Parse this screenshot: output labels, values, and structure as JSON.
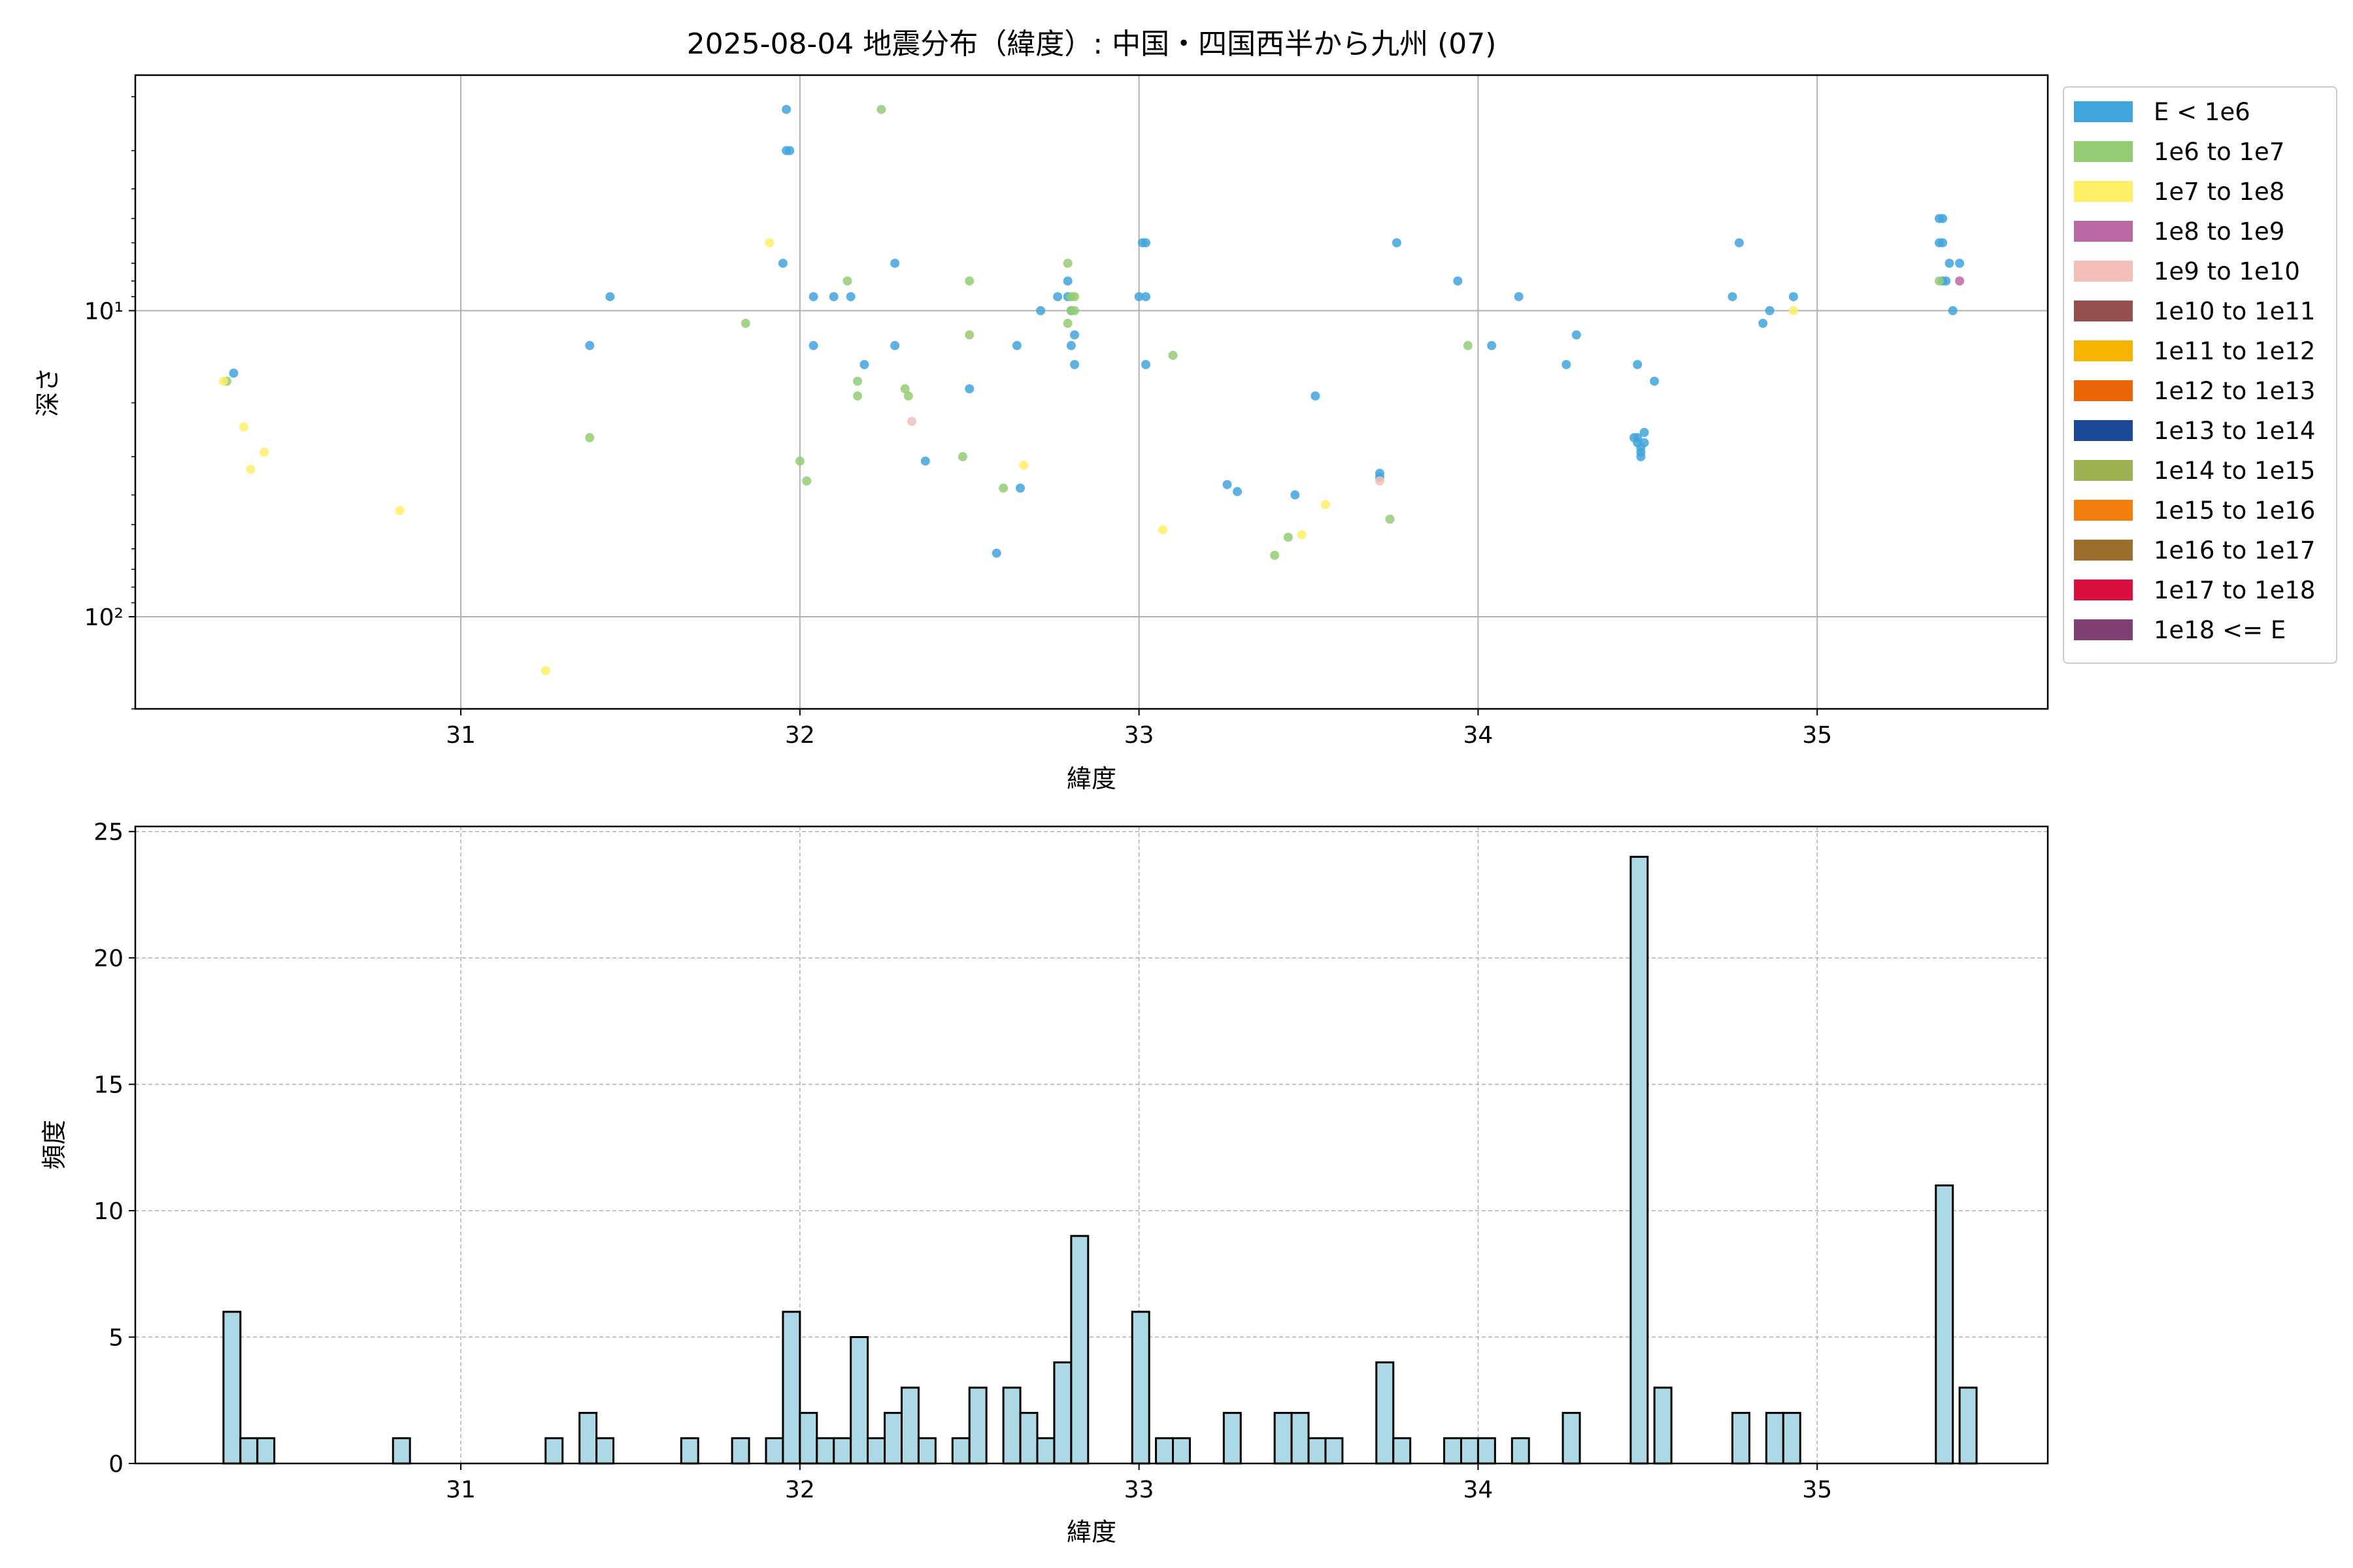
{
  "figure": {
    "title": "2025-08-04 地震分布（緯度）: 中国・四国西半から九州 (07)"
  },
  "chart_data": [
    {
      "type": "scatter",
      "title": "2025-08-04 地震分布（緯度）: 中国・四国西半から九州 (07)",
      "xlabel": "緯度",
      "ylabel": "深さ",
      "xlim": [
        30.04,
        35.68
      ],
      "ylim": [
        200,
        1.7
      ],
      "y_scale": "log",
      "y_inverted": true,
      "grid": true,
      "x_ticks": [
        31,
        32,
        33,
        34,
        35
      ],
      "x_tick_labels": [
        "31",
        "32",
        "33",
        "34",
        "35"
      ],
      "y_ticks": [
        10,
        100
      ],
      "y_tick_labels": [
        "10¹",
        "10²"
      ],
      "legend": {
        "position": "outside-right",
        "entries": [
          {
            "label": "E < 1e6",
            "color": "#41A5DD"
          },
          {
            "label": "1e6 to 1e7",
            "color": "#94CC73"
          },
          {
            "label": "1e7 to 1e8",
            "color": "#FFEE67"
          },
          {
            "label": "1e8 to 1e9",
            "color": "#BC68A5"
          },
          {
            "label": "1e9 to 1e10",
            "color": "#F4BEB9"
          },
          {
            "label": "1e10 to 1e11",
            "color": "#964F4F"
          },
          {
            "label": "1e11 to 1e12",
            "color": "#F6B400"
          },
          {
            "label": "1e12 to 1e13",
            "color": "#EA6506"
          },
          {
            "label": "1e13 to 1e14",
            "color": "#1B4897"
          },
          {
            "label": "1e14 to 1e15",
            "color": "#9DB052"
          },
          {
            "label": "1e15 to 1e16",
            "color": "#F27F0C"
          },
          {
            "label": "1e16 to 1e17",
            "color": "#9B6F2B"
          },
          {
            "label": "1e17 to 1e18",
            "color": "#D90F3F"
          },
          {
            "label": "1e18 <= E",
            "color": "#7E3F73"
          }
        ]
      },
      "series": [
        {
          "name": "E < 1e6",
          "color": "#41A5DD",
          "points": [
            [
              30.33,
              16
            ],
            [
              31.38,
              13
            ],
            [
              31.44,
              9
            ],
            [
              31.96,
              2.2
            ],
            [
              31.96,
              3
            ],
            [
              31.97,
              3
            ],
            [
              31.95,
              7
            ],
            [
              32.04,
              9
            ],
            [
              32.04,
              13
            ],
            [
              32.1,
              9
            ],
            [
              32.15,
              9
            ],
            [
              32.19,
              15
            ],
            [
              32.28,
              7
            ],
            [
              32.28,
              13
            ],
            [
              32.37,
              31
            ],
            [
              32.5,
              18
            ],
            [
              32.58,
              62
            ],
            [
              32.64,
              13
            ],
            [
              32.65,
              38
            ],
            [
              32.71,
              10
            ],
            [
              32.76,
              9
            ],
            [
              32.79,
              8
            ],
            [
              32.79,
              9
            ],
            [
              32.8,
              10
            ],
            [
              32.81,
              12
            ],
            [
              32.81,
              15
            ],
            [
              32.8,
              13
            ],
            [
              33.0,
              9
            ],
            [
              33.01,
              6
            ],
            [
              33.02,
              9
            ],
            [
              33.02,
              15
            ],
            [
              33.02,
              6
            ],
            [
              33.26,
              37
            ],
            [
              33.29,
              39
            ],
            [
              33.46,
              40
            ],
            [
              33.52,
              19
            ],
            [
              33.71,
              34
            ],
            [
              33.71,
              35
            ],
            [
              33.76,
              6
            ],
            [
              33.94,
              8
            ],
            [
              34.04,
              13
            ],
            [
              34.12,
              9
            ],
            [
              34.26,
              15
            ],
            [
              34.29,
              12
            ],
            [
              34.46,
              26
            ],
            [
              34.47,
              15
            ],
            [
              34.47,
              26
            ],
            [
              34.47,
              27
            ],
            [
              34.48,
              28
            ],
            [
              34.48,
              29
            ],
            [
              34.48,
              30
            ],
            [
              34.49,
              27
            ],
            [
              34.49,
              25
            ],
            [
              34.52,
              17
            ],
            [
              34.75,
              9
            ],
            [
              34.77,
              6
            ],
            [
              34.84,
              11
            ],
            [
              34.86,
              10
            ],
            [
              34.93,
              9
            ],
            [
              35.36,
              5
            ],
            [
              35.36,
              6
            ],
            [
              35.37,
              6
            ],
            [
              35.37,
              8
            ],
            [
              35.38,
              8
            ],
            [
              35.39,
              7
            ],
            [
              35.4,
              10
            ],
            [
              35.42,
              7
            ],
            [
              35.37,
              5
            ]
          ]
        },
        {
          "name": "1e6 to 1e7",
          "color": "#94CC73",
          "points": [
            [
              30.31,
              17
            ],
            [
              31.38,
              26
            ],
            [
              31.84,
              11
            ],
            [
              32.0,
              31
            ],
            [
              32.02,
              36
            ],
            [
              32.14,
              8
            ],
            [
              32.17,
              19
            ],
            [
              32.17,
              17
            ],
            [
              32.31,
              18
            ],
            [
              32.32,
              19
            ],
            [
              32.24,
              2.2
            ],
            [
              32.48,
              30
            ],
            [
              32.5,
              8
            ],
            [
              32.5,
              12
            ],
            [
              32.6,
              38
            ],
            [
              32.79,
              7
            ],
            [
              32.8,
              9
            ],
            [
              32.8,
              10
            ],
            [
              32.81,
              9
            ],
            [
              32.81,
              10
            ],
            [
              32.79,
              11
            ],
            [
              33.1,
              14
            ],
            [
              33.4,
              63
            ],
            [
              33.44,
              55
            ],
            [
              33.74,
              48
            ],
            [
              33.97,
              13
            ],
            [
              35.36,
              8
            ]
          ]
        },
        {
          "name": "1e7 to 1e8",
          "color": "#FFEE67",
          "points": [
            [
              30.3,
              17
            ],
            [
              30.36,
              24
            ],
            [
              30.38,
              33
            ],
            [
              30.42,
              29
            ],
            [
              30.82,
              45
            ],
            [
              31.25,
              150
            ],
            [
              31.91,
              6
            ],
            [
              32.66,
              32
            ],
            [
              33.07,
              52
            ],
            [
              33.48,
              54
            ],
            [
              33.55,
              43
            ],
            [
              34.93,
              10
            ]
          ]
        },
        {
          "name": "1e8 to 1e9",
          "color": "#BC68A5",
          "points": [
            [
              35.42,
              8
            ]
          ]
        },
        {
          "name": "1e9 to 1e10",
          "color": "#F4BEB9",
          "points": [
            [
              32.33,
              23
            ],
            [
              33.71,
              36
            ]
          ]
        }
      ]
    },
    {
      "type": "bar",
      "subtype": "histogram",
      "xlabel": "緯度",
      "ylabel": "頻度",
      "xlim": [
        30.04,
        35.68
      ],
      "ylim": [
        0,
        25.2
      ],
      "grid": true,
      "bin_width": 0.05,
      "bar_color": "#ADD8E6",
      "edge_color": "#000000",
      "x_ticks": [
        31,
        32,
        33,
        34,
        35
      ],
      "x_tick_labels": [
        "31",
        "32",
        "33",
        "34",
        "35"
      ],
      "y_ticks": [
        0,
        5,
        10,
        15,
        20,
        25
      ],
      "y_tick_labels": [
        "0",
        "5",
        "10",
        "15",
        "20",
        "25"
      ],
      "bins": [
        [
          30.3,
          6
        ],
        [
          30.35,
          1
        ],
        [
          30.4,
          1
        ],
        [
          30.8,
          1
        ],
        [
          31.25,
          1
        ],
        [
          31.35,
          2
        ],
        [
          31.4,
          1
        ],
        [
          31.65,
          1
        ],
        [
          31.8,
          1
        ],
        [
          31.9,
          1
        ],
        [
          31.95,
          6
        ],
        [
          32.0,
          2
        ],
        [
          32.05,
          1
        ],
        [
          32.1,
          1
        ],
        [
          32.15,
          5
        ],
        [
          32.2,
          1
        ],
        [
          32.25,
          2
        ],
        [
          32.3,
          3
        ],
        [
          32.35,
          1
        ],
        [
          32.45,
          1
        ],
        [
          32.5,
          3
        ],
        [
          32.6,
          3
        ],
        [
          32.65,
          2
        ],
        [
          32.7,
          1
        ],
        [
          32.75,
          4
        ],
        [
          32.8,
          9
        ],
        [
          32.98,
          6
        ],
        [
          33.05,
          1
        ],
        [
          33.1,
          1
        ],
        [
          33.25,
          2
        ],
        [
          33.4,
          2
        ],
        [
          33.45,
          2
        ],
        [
          33.5,
          1
        ],
        [
          33.55,
          1
        ],
        [
          33.7,
          4
        ],
        [
          33.75,
          1
        ],
        [
          33.9,
          1
        ],
        [
          33.95,
          1
        ],
        [
          34.0,
          1
        ],
        [
          34.1,
          1
        ],
        [
          34.25,
          2
        ],
        [
          34.45,
          24
        ],
        [
          34.52,
          3
        ],
        [
          34.75,
          2
        ],
        [
          34.85,
          2
        ],
        [
          34.9,
          2
        ],
        [
          35.35,
          11
        ],
        [
          35.42,
          3
        ]
      ]
    }
  ]
}
